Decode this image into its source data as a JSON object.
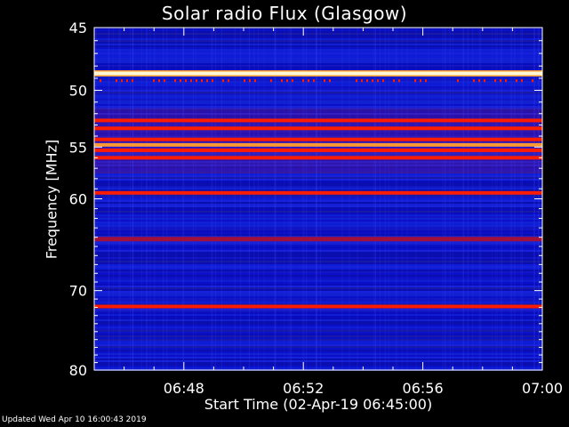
{
  "chart_data": {
    "type": "heatmap",
    "title": "Solar radio Flux (Glasgow)",
    "xlabel": "Start Time (02-Apr-19 06:45:00)",
    "ylabel": "Frequency [MHz]",
    "ylim": [
      45,
      80
    ],
    "y_scale": "log",
    "xlim": [
      "06:45",
      "07:00"
    ],
    "x_ticks": [
      "06:48",
      "06:52",
      "06:56",
      "07:00"
    ],
    "y_ticks": [
      45,
      50,
      55,
      60,
      70,
      80
    ],
    "colormap": "black-blue-red-yellow-white",
    "background_level": "blue",
    "bands": [
      {
        "freq_mhz": 48.6,
        "level": "white",
        "persistence": "continuous"
      },
      {
        "freq_mhz": 49.2,
        "level": "red",
        "persistence": "intermittent"
      },
      {
        "freq_mhz": 52.6,
        "level": "red",
        "persistence": "continuous"
      },
      {
        "freq_mhz": 53.3,
        "level": "red",
        "persistence": "continuous"
      },
      {
        "freq_mhz": 54.3,
        "level": "red",
        "persistence": "continuous"
      },
      {
        "freq_mhz": 54.8,
        "level": "orange",
        "persistence": "continuous"
      },
      {
        "freq_mhz": 55.3,
        "level": "red",
        "persistence": "continuous"
      },
      {
        "freq_mhz": 56.0,
        "level": "red",
        "persistence": "continuous"
      },
      {
        "freq_mhz": 59.4,
        "level": "red",
        "persistence": "continuous"
      },
      {
        "freq_mhz": 64.2,
        "level": "dark-red",
        "persistence": "continuous"
      },
      {
        "freq_mhz": 71.9,
        "level": "red",
        "persistence": "continuous"
      }
    ]
  },
  "footer": "Updated Wed Apr 10 16:00:43 2019",
  "colors": {
    "background": "#000000",
    "plot_low": "#0b10c8",
    "plot_high": "#ff2000",
    "hot": "#fff6cc",
    "axes": "#ffffff"
  }
}
